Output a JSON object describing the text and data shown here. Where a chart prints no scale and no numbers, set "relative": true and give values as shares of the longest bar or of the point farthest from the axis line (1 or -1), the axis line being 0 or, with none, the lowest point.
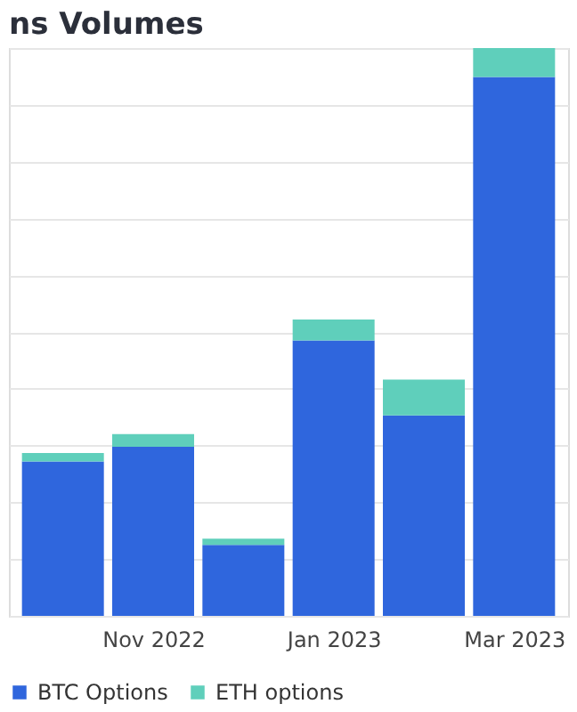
{
  "chart_data": {
    "type": "bar",
    "title": "ns Volumes",
    "relative": true,
    "stacked": true,
    "grid": "y",
    "legend": "bottom",
    "categories": [
      null,
      "Nov 2022",
      null,
      "Jan 2023",
      null,
      "Mar 2023"
    ],
    "series": [
      {
        "name": "BTC Options",
        "color": "#2f66dd",
        "values": [
          0.272,
          0.298,
          0.125,
          0.485,
          0.353,
          0.949
        ]
      },
      {
        "name": "ETH options",
        "color": "#5fcfbb",
        "values": [
          0.015,
          0.022,
          0.011,
          0.037,
          0.063,
          0.051
        ]
      }
    ]
  }
}
